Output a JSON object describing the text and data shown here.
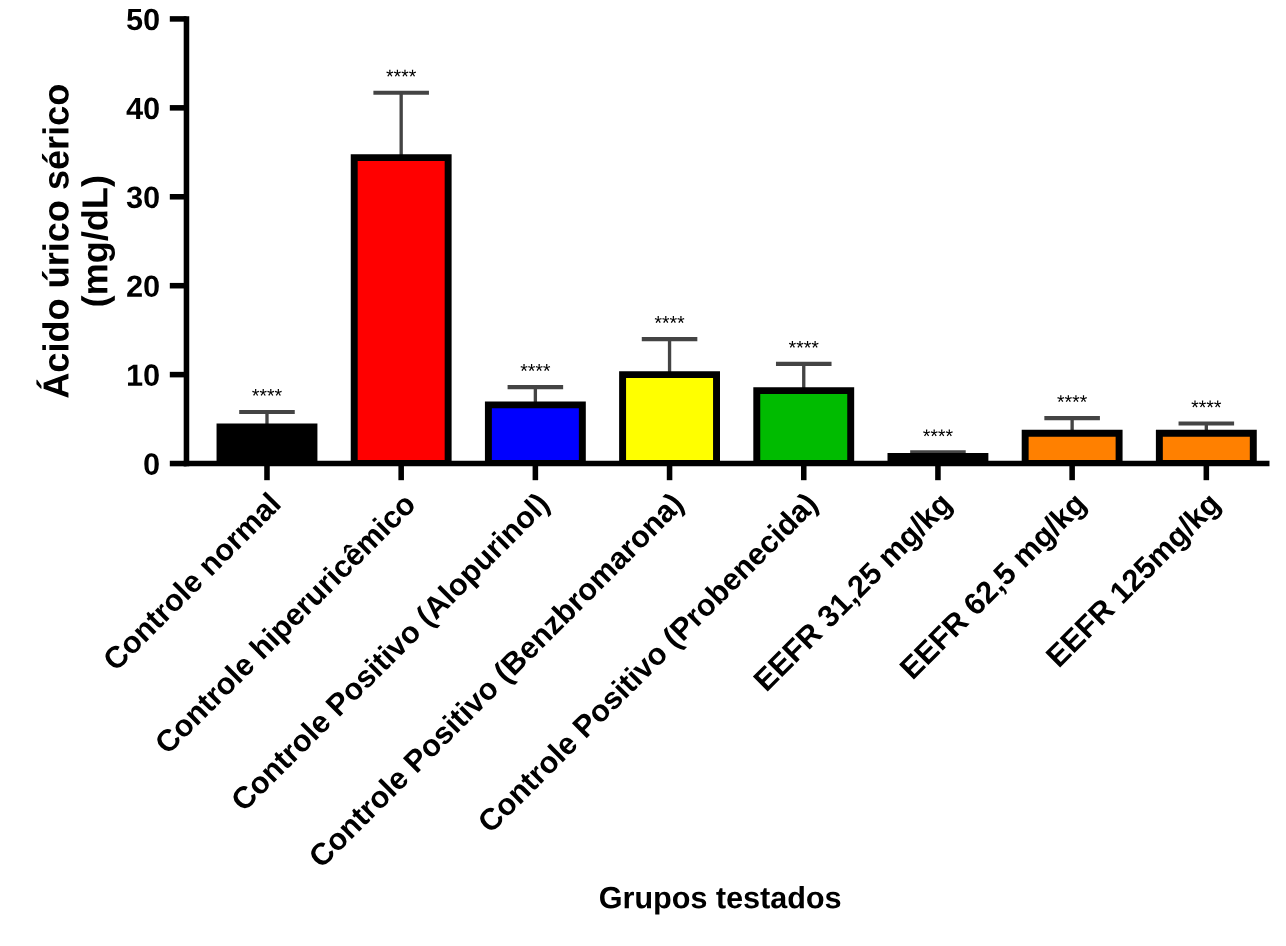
{
  "chart_data": {
    "type": "bar",
    "xlabel": "Grupos testados",
    "ylabel": "Ácido úrico sérico\n(mg/dL)",
    "categories": [
      "Controle normal",
      "Controle hiperuricêmico",
      "Controle Positivo (Alopurinol)",
      "Controle Positivo (Benzbromarona)",
      "Controle Positivo (Probenecida)",
      "EEFR 31,25 mg/kg",
      "EEFR 62,5 mg/kg",
      "EEFR 125mg/kg"
    ],
    "values": [
      4.1,
      34.4,
      6.6,
      10.0,
      8.2,
      0.8,
      3.4,
      3.4
    ],
    "errors": [
      [
        4.1,
        5.8
      ],
      [
        34.4,
        41.7
      ],
      [
        6.6,
        8.6
      ],
      [
        10.0,
        14.0
      ],
      [
        8.2,
        11.2
      ],
      [
        0.8,
        1.25
      ],
      [
        3.4,
        5.1
      ],
      [
        3.4,
        4.5
      ]
    ],
    "colors": [
      "#000000",
      "#ff0000",
      "#0000ff",
      "#ffff00",
      "#00bb00",
      "#ff8000",
      "#ff8000",
      "#ff8000"
    ],
    "ylim": [
      0,
      50
    ],
    "yticks": [
      0,
      10,
      20,
      30,
      40,
      50
    ],
    "grid": false,
    "legend": false,
    "annotations": [
      {
        "text": "****",
        "x": "Controle normal",
        "y": 5.8
      },
      {
        "text": "****",
        "x": "Controle hiperuricêmico",
        "y": 41.7
      },
      {
        "text": "****",
        "x": "Controle Positivo (Alopurinol)",
        "y": 8.6
      },
      {
        "text": "****",
        "x": "Controle Positivo (Benzbromarona)",
        "y": 14.0
      },
      {
        "text": "****",
        "x": "Controle Positivo (Probenecida)",
        "y": 11.2
      },
      {
        "text": "****",
        "x": "EEFR 31,25 mg/kg",
        "y": 1.25
      },
      {
        "text": "****",
        "x": "EEFR 62,5 mg/kg",
        "y": 5.1
      },
      {
        "text": "****",
        "x": "EEFR 125mg/kg",
        "y": 4.5
      }
    ]
  }
}
